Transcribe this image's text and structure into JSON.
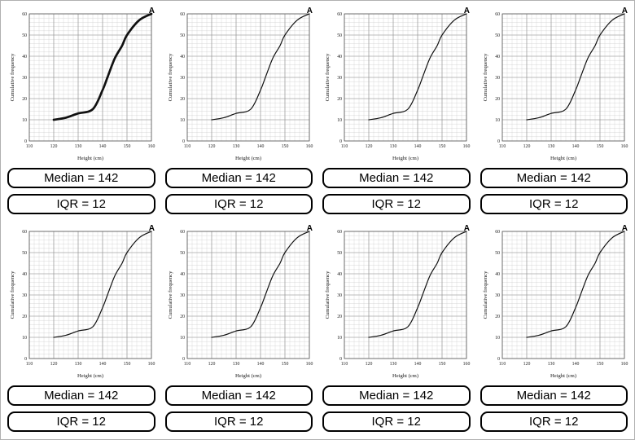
{
  "page": {
    "cells": [
      {
        "corner_label": "A",
        "median_label": "Median = 142",
        "iqr_label": "IQR = 12"
      },
      {
        "corner_label": "A",
        "median_label": "Median = 142",
        "iqr_label": "IQR = 12"
      },
      {
        "corner_label": "A",
        "median_label": "Median = 142",
        "iqr_label": "IQR = 12"
      },
      {
        "corner_label": "A",
        "median_label": "Median = 142",
        "iqr_label": "IQR = 12"
      },
      {
        "corner_label": "A",
        "median_label": "Median = 142",
        "iqr_label": "IQR = 12"
      },
      {
        "corner_label": "A",
        "median_label": "Median = 142",
        "iqr_label": "IQR = 12"
      },
      {
        "corner_label": "A",
        "median_label": "Median = 142",
        "iqr_label": "IQR = 12"
      },
      {
        "corner_label": "A",
        "median_label": "Median = 142",
        "iqr_label": "IQR = 12"
      }
    ]
  },
  "chart_data": {
    "type": "line",
    "title": "",
    "xlabel": "Height (cm)",
    "ylabel": "Cumulative frequency",
    "xlim": [
      110,
      160
    ],
    "ylim": [
      0,
      60
    ],
    "x_ticks": [
      110,
      120,
      130,
      140,
      150,
      160
    ],
    "y_ticks": [
      0,
      10,
      20,
      30,
      40,
      50,
      60
    ],
    "grid": "on",
    "minor_grid_step": {
      "x": 2,
      "y": 2
    },
    "legend": "none",
    "series": [
      {
        "name": "cumulative-frequency-ogive",
        "x": [
          120,
          125,
          130,
          136,
          140,
          142,
          145,
          148,
          150,
          155,
          160
        ],
        "y": [
          10,
          11,
          13,
          15,
          24,
          30,
          39,
          45,
          50,
          57,
          60
        ]
      }
    ],
    "annotation": "A",
    "median": 142,
    "iqr": 12,
    "repeated_in_cells": 8
  }
}
